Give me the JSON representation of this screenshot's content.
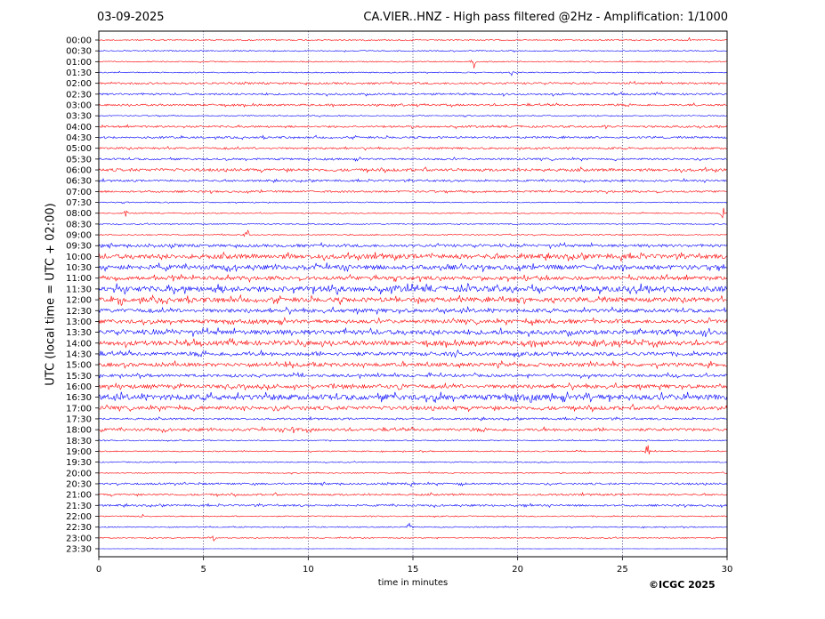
{
  "header": {
    "date": "03-09-2025",
    "title": "CA.VIER..HNZ - High pass filtered @2Hz - Amplification: 1/1000"
  },
  "footer": {
    "copyright": "©ICGC 2025"
  },
  "chart_data": {
    "type": "line",
    "title": "CA.VIER..HNZ - High pass filtered @2Hz - Amplification: 1/1000",
    "xlabel": "time in minutes",
    "ylabel": "UTC (local time = UTC + 02:00)",
    "xlim": [
      0,
      30
    ],
    "x_ticks": [
      0,
      5,
      10,
      15,
      20,
      25,
      30
    ],
    "grid": "vertical dotted at x ticks",
    "trace_colors": [
      "#ff0000",
      "#0000ff"
    ],
    "rows": [
      "00:00",
      "00:30",
      "01:00",
      "01:30",
      "02:00",
      "02:30",
      "03:00",
      "03:30",
      "04:00",
      "04:30",
      "05:00",
      "05:30",
      "06:00",
      "06:30",
      "07:00",
      "07:30",
      "08:00",
      "08:30",
      "09:00",
      "09:30",
      "10:00",
      "10:30",
      "11:00",
      "11:30",
      "12:00",
      "12:30",
      "13:00",
      "13:30",
      "14:00",
      "14:30",
      "15:00",
      "15:30",
      "16:00",
      "16:30",
      "17:00",
      "17:30",
      "18:00",
      "18:30",
      "19:00",
      "19:30",
      "20:00",
      "20:30",
      "21:00",
      "21:30",
      "22:00",
      "22:30",
      "23:00",
      "23:30"
    ],
    "noise_level": [
      1,
      1,
      1,
      1,
      2,
      2,
      2,
      1,
      2,
      2,
      2,
      2,
      3,
      2,
      2,
      1,
      1,
      1,
      1,
      3,
      5,
      5,
      4,
      6,
      5,
      4,
      4,
      5,
      5,
      4,
      4,
      3,
      4,
      6,
      4,
      2,
      3,
      1,
      1,
      1,
      1,
      2,
      2,
      2,
      1,
      1,
      1,
      0
    ],
    "events": [
      {
        "row": "00:00",
        "minute": 28.2,
        "amplitude": 3
      },
      {
        "row": "01:00",
        "minute": 17.9,
        "amplitude": 9
      },
      {
        "row": "01:30",
        "minute": 19.7,
        "amplitude": 4
      },
      {
        "row": "03:00",
        "minute": 28.5,
        "amplitude": 6
      },
      {
        "row": "04:00",
        "minute": 24.2,
        "amplitude": 3
      },
      {
        "row": "08:00",
        "minute": 1.3,
        "amplitude": 4
      },
      {
        "row": "08:00",
        "minute": 29.8,
        "amplitude": 12
      },
      {
        "row": "09:00",
        "minute": 7.1,
        "amplitude": 10
      },
      {
        "row": "10:00",
        "minute": 4.2,
        "amplitude": 5
      },
      {
        "row": "11:30",
        "minute": 11.0,
        "amplitude": 6
      },
      {
        "row": "12:00",
        "minute": 1.1,
        "amplitude": 5
      },
      {
        "row": "13:00",
        "minute": 20.7,
        "amplitude": 4
      },
      {
        "row": "16:00",
        "minute": 14.4,
        "amplitude": 10
      },
      {
        "row": "18:00",
        "minute": 9.3,
        "amplitude": 5
      },
      {
        "row": "19:00",
        "minute": 26.2,
        "amplitude": 12
      },
      {
        "row": "20:30",
        "minute": 15.0,
        "amplitude": 4
      },
      {
        "row": "20:30",
        "minute": 17.3,
        "amplitude": 4
      },
      {
        "row": "21:30",
        "minute": 20.5,
        "amplitude": 3
      },
      {
        "row": "22:00",
        "minute": 2.1,
        "amplitude": 5
      },
      {
        "row": "22:30",
        "minute": 14.8,
        "amplitude": 7
      },
      {
        "row": "23:00",
        "minute": 5.5,
        "amplitude": 5
      }
    ]
  }
}
